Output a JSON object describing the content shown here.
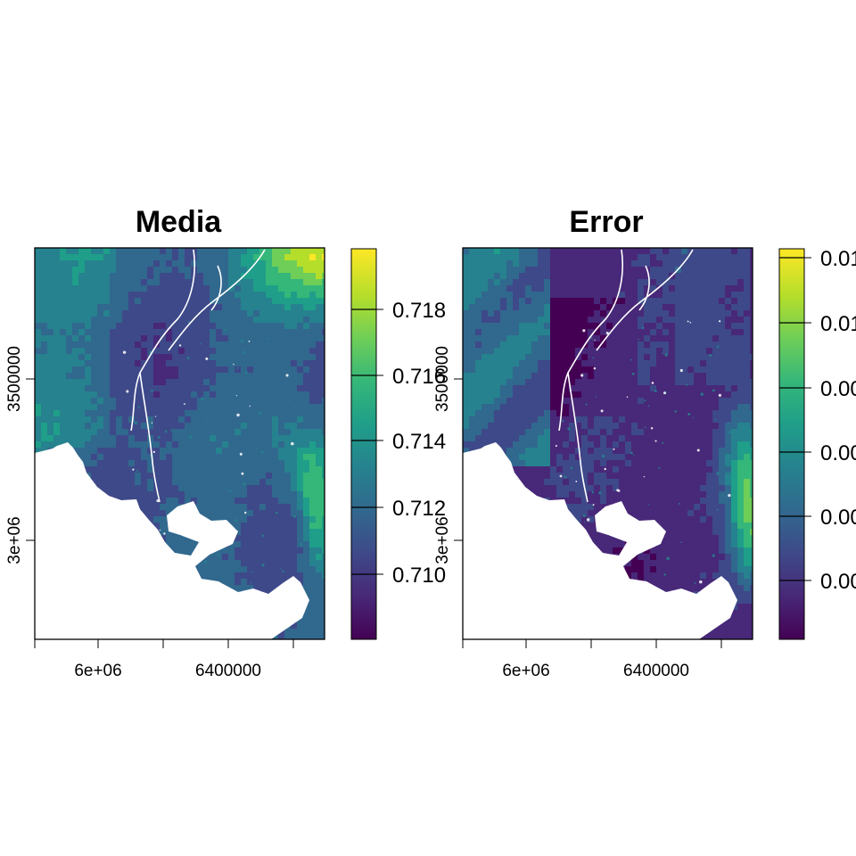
{
  "panels": [
    {
      "id": "media",
      "title": "Media",
      "x_ticks": [
        "6e+06",
        "6400000"
      ],
      "y_ticks": [
        "3500000",
        "3e+06"
      ],
      "colorbar": {
        "ticks": [
          "0.718",
          "0.716",
          "0.714",
          "0.712",
          "0.710"
        ]
      },
      "field": {
        "base": 0.35,
        "hotspots": [
          "northeast",
          "east-coast"
        ]
      }
    },
    {
      "id": "error",
      "title": "Error",
      "x_ticks": [
        "6e+06",
        "6400000"
      ],
      "y_ticks": [
        "3500000",
        "3e+06"
      ],
      "colorbar": {
        "ticks": [
          "0.01",
          "0.01",
          "0.00",
          "0.00",
          "0.00",
          "0.00"
        ]
      },
      "field": {
        "base": 0.15,
        "hotspots": [
          "east-coast",
          "west-plateau"
        ]
      }
    }
  ],
  "colormap": "viridis",
  "colors": {
    "viridis": [
      "#440154",
      "#482878",
      "#3e4989",
      "#31688e",
      "#26828e",
      "#1f9e89",
      "#35b779",
      "#6ece58",
      "#b5de2b",
      "#fde725"
    ]
  }
}
